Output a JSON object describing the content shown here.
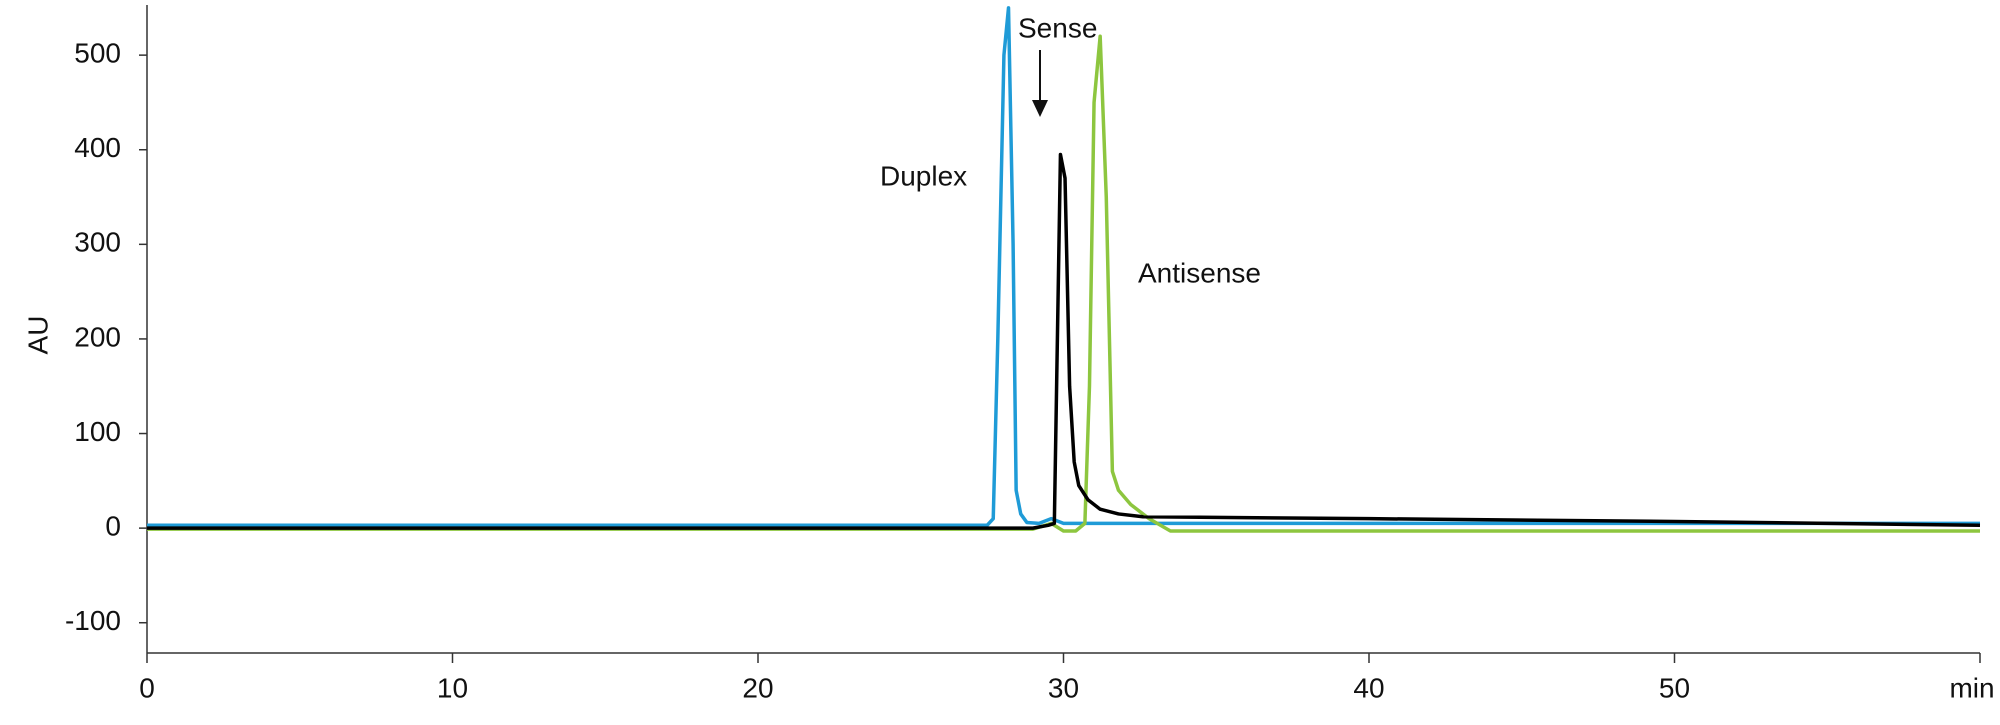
{
  "chart_data": {
    "type": "line",
    "ylabel": "AU",
    "xlim": [
      0,
      60
    ],
    "ylim": [
      -132,
      553
    ],
    "xticks": [
      0,
      10,
      20,
      30,
      40,
      50,
      {
        "value": 60,
        "label": "min"
      }
    ],
    "yticks": [
      -100,
      0,
      100,
      200,
      300,
      400,
      500
    ],
    "grid": false,
    "annotations": [
      "Duplex",
      "Sense",
      "Antisense"
    ],
    "series": [
      {
        "name": "Duplex",
        "color": "#1f9bd7",
        "x": [
          0,
          27.5,
          27.7,
          27.85,
          28.05,
          28.2,
          28.35,
          28.45,
          28.6,
          28.8,
          29.2,
          29.6,
          30.0,
          30.5,
          60
        ],
        "values": [
          3,
          3,
          10,
          200,
          500,
          550,
          300,
          40,
          15,
          6,
          5,
          10,
          5,
          5,
          5
        ]
      },
      {
        "name": "Antisense",
        "color": "#8dc63f",
        "x": [
          0,
          29.0,
          29.6,
          30.0,
          30.4,
          30.7,
          30.85,
          31.0,
          31.2,
          31.4,
          31.6,
          31.8,
          32.2,
          32.8,
          33.5,
          40,
          60
        ],
        "values": [
          -1,
          -1,
          5,
          -3,
          -3,
          5,
          150,
          450,
          520,
          350,
          60,
          40,
          25,
          10,
          -3,
          -3,
          -3
        ]
      },
      {
        "name": "Sense",
        "color": "#000000",
        "x": [
          0,
          29.0,
          29.5,
          29.7,
          29.8,
          29.9,
          30.05,
          30.2,
          30.35,
          30.5,
          30.8,
          31.2,
          31.8,
          32.6,
          40,
          50,
          60
        ],
        "values": [
          0,
          0,
          3,
          5,
          200,
          395,
          370,
          150,
          70,
          45,
          30,
          20,
          15,
          12,
          10,
          7,
          3
        ]
      }
    ]
  }
}
